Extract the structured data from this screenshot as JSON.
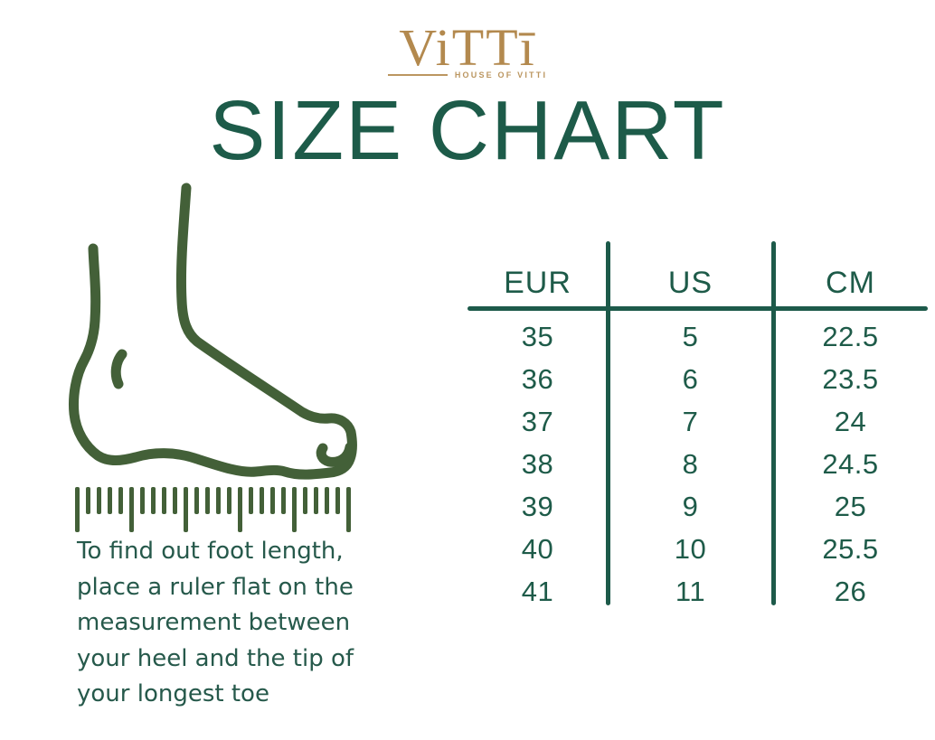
{
  "brand": {
    "logo_text": "ViTTī",
    "tagline": "HOUSE OF VITTI"
  },
  "chart_data": {
    "type": "table",
    "title": "SIZE CHART",
    "columns": [
      "EUR",
      "US",
      "CM"
    ],
    "rows": [
      [
        "35",
        "5",
        "22.5"
      ],
      [
        "36",
        "6",
        "23.5"
      ],
      [
        "37",
        "7",
        "24"
      ],
      [
        "38",
        "8",
        "24.5"
      ],
      [
        "39",
        "9",
        "25"
      ],
      [
        "40",
        "10",
        "25.5"
      ],
      [
        "41",
        "11",
        "26"
      ]
    ],
    "layout": "three columns separated by vertical rules, horizontal rule under header"
  },
  "instructions": {
    "text": "To find out foot length,\nplace a ruler flat on the\nmeasurement between\nyour heel and the tip of\nyour longest toe"
  },
  "ruler": {
    "tick_count": 26,
    "long_every": 5
  },
  "colors": {
    "title_green": "#1d5b49",
    "table_green": "#1e5b49",
    "rule_green": "#1d5a4a",
    "body_green": "#26594b",
    "foot_green": "#436038",
    "gold": "#b3894e"
  }
}
